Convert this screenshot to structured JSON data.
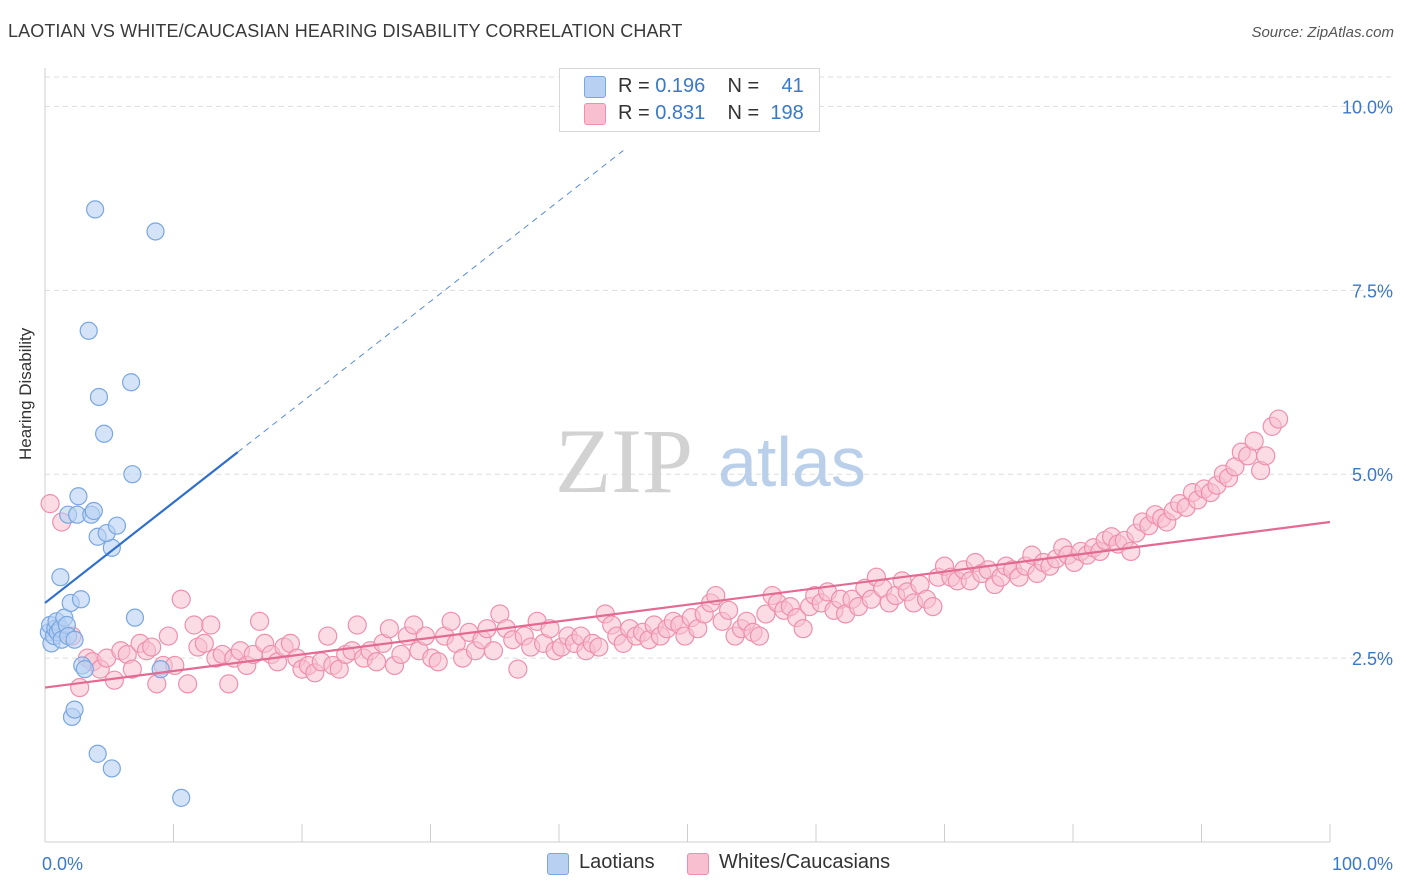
{
  "title": "LAOTIAN VS WHITE/CAUCASIAN HEARING DISABILITY CORRELATION CHART",
  "source": "Source: ZipAtlas.com",
  "watermark": {
    "zip": "ZIP",
    "atlas": "atlas"
  },
  "legend": {
    "rows": [
      {
        "r_label": "R =",
        "r_value": "0.196",
        "n_label": "N =",
        "n_value": "41"
      },
      {
        "r_label": "R =",
        "r_value": "0.831",
        "n_label": "N =",
        "n_value": "198"
      }
    ]
  },
  "bottom_legend": [
    "Laotians",
    "Whites/Caucasians"
  ],
  "colors": {
    "laotian_fill": "#b8d1f3",
    "laotian_stroke": "#7aa7e0",
    "laotian_line": "#2f6fcc",
    "white_fill": "#f7bfd0",
    "white_stroke": "#ee90ad",
    "white_line": "#e36a93",
    "axis_label": "#3a78c8",
    "grid": "#dddddd"
  },
  "chart_data": {
    "type": "scatter",
    "title": "LAOTIAN VS WHITE/CAUCASIAN HEARING DISABILITY CORRELATION CHART",
    "xlabel": "",
    "ylabel": "Hearing Disability",
    "xlim": [
      0,
      100
    ],
    "ylim": [
      0,
      10.4
    ],
    "x_tick_labels": [
      "0.0%",
      "100.0%"
    ],
    "y_ticks": [
      2.5,
      5.0,
      7.5,
      10.0
    ],
    "y_tick_labels": [
      "2.5%",
      "5.0%",
      "7.5%",
      "10.0%"
    ],
    "grid": "horizontal dashed",
    "legend_position": "top-center",
    "series": [
      {
        "name": "Laotians",
        "r": 0.196,
        "n": 41,
        "trend": {
          "x": [
            0,
            15
          ],
          "y": [
            3.25,
            5.3
          ],
          "extended_to": [
            45,
            9.4
          ]
        },
        "points": [
          [
            0.3,
            2.85
          ],
          [
            0.4,
            2.95
          ],
          [
            0.5,
            2.7
          ],
          [
            0.7,
            2.8
          ],
          [
            0.8,
            2.9
          ],
          [
            0.9,
            3.0
          ],
          [
            1.0,
            2.85
          ],
          [
            1.2,
            2.9
          ],
          [
            1.3,
            2.75
          ],
          [
            1.5,
            3.05
          ],
          [
            1.7,
            2.95
          ],
          [
            1.8,
            2.8
          ],
          [
            1.2,
            3.6
          ],
          [
            1.8,
            4.45
          ],
          [
            2.0,
            3.25
          ],
          [
            2.3,
            2.75
          ],
          [
            2.5,
            4.45
          ],
          [
            2.6,
            4.7
          ],
          [
            2.8,
            3.3
          ],
          [
            2.9,
            2.4
          ],
          [
            3.1,
            2.35
          ],
          [
            2.1,
            1.7
          ],
          [
            2.3,
            1.8
          ],
          [
            3.6,
            4.45
          ],
          [
            3.8,
            4.5
          ],
          [
            4.1,
            4.15
          ],
          [
            3.9,
            8.6
          ],
          [
            3.4,
            6.95
          ],
          [
            4.2,
            6.05
          ],
          [
            4.6,
            5.55
          ],
          [
            5.2,
            4.0
          ],
          [
            4.8,
            4.2
          ],
          [
            5.6,
            4.3
          ],
          [
            6.7,
            6.25
          ],
          [
            6.8,
            5.0
          ],
          [
            7.0,
            3.05
          ],
          [
            8.6,
            8.3
          ],
          [
            9.0,
            2.35
          ],
          [
            4.1,
            1.2
          ],
          [
            5.2,
            1.0
          ],
          [
            10.6,
            0.6
          ]
        ]
      },
      {
        "name": "Whites/Caucasians",
        "r": 0.831,
        "n": 198,
        "trend": {
          "x": [
            0,
            100
          ],
          "y": [
            2.1,
            4.35
          ]
        },
        "points": [
          [
            0.4,
            4.6
          ],
          [
            1.3,
            4.35
          ],
          [
            2.1,
            2.8
          ],
          [
            2.7,
            2.1
          ],
          [
            3.3,
            2.5
          ],
          [
            3.7,
            2.45
          ],
          [
            4.3,
            2.35
          ],
          [
            4.8,
            2.5
          ],
          [
            5.4,
            2.2
          ],
          [
            5.9,
            2.6
          ],
          [
            6.4,
            2.55
          ],
          [
            6.8,
            2.35
          ],
          [
            7.4,
            2.7
          ],
          [
            7.9,
            2.6
          ],
          [
            8.3,
            2.65
          ],
          [
            8.7,
            2.15
          ],
          [
            9.2,
            2.4
          ],
          [
            9.6,
            2.8
          ],
          [
            10.1,
            2.4
          ],
          [
            10.6,
            3.3
          ],
          [
            11.1,
            2.15
          ],
          [
            11.6,
            2.95
          ],
          [
            11.9,
            2.65
          ],
          [
            12.4,
            2.7
          ],
          [
            12.9,
            2.95
          ],
          [
            13.3,
            2.5
          ],
          [
            13.8,
            2.55
          ],
          [
            14.3,
            2.15
          ],
          [
            14.7,
            2.5
          ],
          [
            15.2,
            2.6
          ],
          [
            15.7,
            2.4
          ],
          [
            16.2,
            2.55
          ],
          [
            16.7,
            3.0
          ],
          [
            17.1,
            2.7
          ],
          [
            17.6,
            2.55
          ],
          [
            18.1,
            2.45
          ],
          [
            18.6,
            2.65
          ],
          [
            19.1,
            2.7
          ],
          [
            19.6,
            2.5
          ],
          [
            20.0,
            2.35
          ],
          [
            20.5,
            2.4
          ],
          [
            21.0,
            2.3
          ],
          [
            21.5,
            2.45
          ],
          [
            22.0,
            2.8
          ],
          [
            22.4,
            2.4
          ],
          [
            22.9,
            2.35
          ],
          [
            23.4,
            2.55
          ],
          [
            23.9,
            2.6
          ],
          [
            24.3,
            2.95
          ],
          [
            24.8,
            2.5
          ],
          [
            25.3,
            2.6
          ],
          [
            25.8,
            2.45
          ],
          [
            26.3,
            2.7
          ],
          [
            26.8,
            2.9
          ],
          [
            27.2,
            2.4
          ],
          [
            27.7,
            2.55
          ],
          [
            28.2,
            2.8
          ],
          [
            28.7,
            2.95
          ],
          [
            29.1,
            2.6
          ],
          [
            29.6,
            2.8
          ],
          [
            30.1,
            2.5
          ],
          [
            30.6,
            2.45
          ],
          [
            31.1,
            2.8
          ],
          [
            31.6,
            3.0
          ],
          [
            32.0,
            2.7
          ],
          [
            32.5,
            2.5
          ],
          [
            33.0,
            2.85
          ],
          [
            33.5,
            2.6
          ],
          [
            34.0,
            2.75
          ],
          [
            34.4,
            2.9
          ],
          [
            34.9,
            2.6
          ],
          [
            35.4,
            3.1
          ],
          [
            35.9,
            2.9
          ],
          [
            36.4,
            2.75
          ],
          [
            36.8,
            2.35
          ],
          [
            37.3,
            2.8
          ],
          [
            37.8,
            2.65
          ],
          [
            38.3,
            3.0
          ],
          [
            38.8,
            2.7
          ],
          [
            39.3,
            2.9
          ],
          [
            39.7,
            2.6
          ],
          [
            40.2,
            2.65
          ],
          [
            40.7,
            2.8
          ],
          [
            41.2,
            2.7
          ],
          [
            41.7,
            2.8
          ],
          [
            42.1,
            2.6
          ],
          [
            42.6,
            2.7
          ],
          [
            43.1,
            2.65
          ],
          [
            43.6,
            3.1
          ],
          [
            44.1,
            2.95
          ],
          [
            44.5,
            2.8
          ],
          [
            45.0,
            2.7
          ],
          [
            45.5,
            2.9
          ],
          [
            46.0,
            2.8
          ],
          [
            46.5,
            2.85
          ],
          [
            47.0,
            2.75
          ],
          [
            47.4,
            2.95
          ],
          [
            47.9,
            2.8
          ],
          [
            48.4,
            2.9
          ],
          [
            48.9,
            3.0
          ],
          [
            49.4,
            2.95
          ],
          [
            49.8,
            2.8
          ],
          [
            50.3,
            3.05
          ],
          [
            50.8,
            2.9
          ],
          [
            51.3,
            3.1
          ],
          [
            51.8,
            3.25
          ],
          [
            52.2,
            3.35
          ],
          [
            52.7,
            3.0
          ],
          [
            53.2,
            3.15
          ],
          [
            53.7,
            2.8
          ],
          [
            54.2,
            2.9
          ],
          [
            54.6,
            3.0
          ],
          [
            55.1,
            2.85
          ],
          [
            55.6,
            2.8
          ],
          [
            56.1,
            3.1
          ],
          [
            56.6,
            3.35
          ],
          [
            57.0,
            3.25
          ],
          [
            57.5,
            3.15
          ],
          [
            58.0,
            3.2
          ],
          [
            58.5,
            3.05
          ],
          [
            59.0,
            2.9
          ],
          [
            59.5,
            3.2
          ],
          [
            59.9,
            3.35
          ],
          [
            60.4,
            3.25
          ],
          [
            60.9,
            3.4
          ],
          [
            61.4,
            3.15
          ],
          [
            61.9,
            3.3
          ],
          [
            62.3,
            3.1
          ],
          [
            62.8,
            3.3
          ],
          [
            63.3,
            3.2
          ],
          [
            63.8,
            3.45
          ],
          [
            64.3,
            3.3
          ],
          [
            64.7,
            3.6
          ],
          [
            65.2,
            3.45
          ],
          [
            65.7,
            3.25
          ],
          [
            66.2,
            3.35
          ],
          [
            66.7,
            3.55
          ],
          [
            67.1,
            3.4
          ],
          [
            67.6,
            3.25
          ],
          [
            68.1,
            3.5
          ],
          [
            68.6,
            3.3
          ],
          [
            69.1,
            3.2
          ],
          [
            69.5,
            3.6
          ],
          [
            70.0,
            3.75
          ],
          [
            70.5,
            3.6
          ],
          [
            71.0,
            3.55
          ],
          [
            71.5,
            3.7
          ],
          [
            72.0,
            3.55
          ],
          [
            72.4,
            3.8
          ],
          [
            72.9,
            3.65
          ],
          [
            73.4,
            3.7
          ],
          [
            73.9,
            3.5
          ],
          [
            74.4,
            3.6
          ],
          [
            74.8,
            3.75
          ],
          [
            75.3,
            3.7
          ],
          [
            75.8,
            3.6
          ],
          [
            76.3,
            3.75
          ],
          [
            76.8,
            3.9
          ],
          [
            77.2,
            3.65
          ],
          [
            77.7,
            3.8
          ],
          [
            78.2,
            3.75
          ],
          [
            78.7,
            3.85
          ],
          [
            79.2,
            4.0
          ],
          [
            79.6,
            3.9
          ],
          [
            80.1,
            3.8
          ],
          [
            80.6,
            3.95
          ],
          [
            81.1,
            3.9
          ],
          [
            81.6,
            4.0
          ],
          [
            82.1,
            3.95
          ],
          [
            82.5,
            4.1
          ],
          [
            83.0,
            4.15
          ],
          [
            83.5,
            4.05
          ],
          [
            84.0,
            4.1
          ],
          [
            84.5,
            3.95
          ],
          [
            84.9,
            4.2
          ],
          [
            85.4,
            4.35
          ],
          [
            85.9,
            4.3
          ],
          [
            86.4,
            4.45
          ],
          [
            86.9,
            4.4
          ],
          [
            87.3,
            4.35
          ],
          [
            87.8,
            4.5
          ],
          [
            88.3,
            4.6
          ],
          [
            88.8,
            4.55
          ],
          [
            89.3,
            4.75
          ],
          [
            89.7,
            4.65
          ],
          [
            90.2,
            4.8
          ],
          [
            90.7,
            4.75
          ],
          [
            91.2,
            4.85
          ],
          [
            91.7,
            5.0
          ],
          [
            92.1,
            4.95
          ],
          [
            92.6,
            5.1
          ],
          [
            93.1,
            5.3
          ],
          [
            93.6,
            5.25
          ],
          [
            94.1,
            5.45
          ],
          [
            94.6,
            5.05
          ],
          [
            95.0,
            5.25
          ],
          [
            95.5,
            5.65
          ],
          [
            96.0,
            5.75
          ]
        ]
      }
    ]
  }
}
